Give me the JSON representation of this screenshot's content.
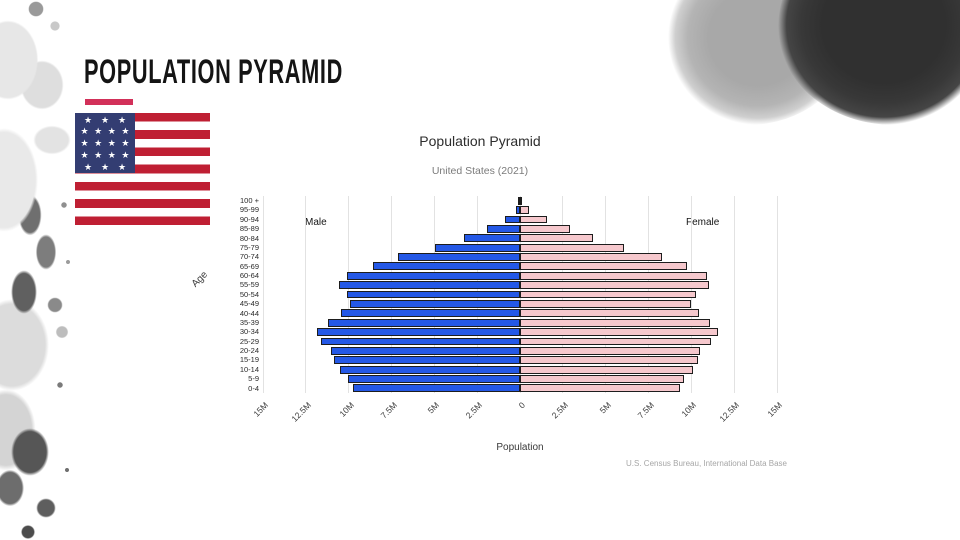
{
  "slide": {
    "title": "POPULATION PYRAMID",
    "accent_color": "#d23059"
  },
  "flag": {
    "name": "united-states-flag",
    "red": "#bf1f33",
    "blue": "#333d72",
    "star_rows": [
      3,
      4,
      4,
      4,
      3
    ]
  },
  "chart_data": {
    "type": "bar",
    "variant": "population-pyramid",
    "title": "Population Pyramid",
    "subtitle": "United States (2021)",
    "xlabel": "Population",
    "ylabel": "Age",
    "source": "U.S. Census Bureau, International Data Base",
    "unit": "millions",
    "grid": true,
    "xlim": [
      -15,
      15
    ],
    "age_groups": [
      "100 +",
      "95-99",
      "90-94",
      "85-89",
      "80-84",
      "75-79",
      "70-74",
      "65-69",
      "60-64",
      "55-59",
      "50-54",
      "45-49",
      "40-44",
      "35-39",
      "30-34",
      "25-29",
      "20-24",
      "15-19",
      "10-14",
      "5-9",
      "0-4"
    ],
    "series": [
      {
        "name": "Male",
        "side": "left",
        "color": "#2458e6",
        "values": [
          0.03,
          0.24,
          0.86,
          1.93,
          3.26,
          4.96,
          7.13,
          8.6,
          10.1,
          10.57,
          10.08,
          9.91,
          10.45,
          11.22,
          11.87,
          11.62,
          11.01,
          10.84,
          10.53,
          10.03,
          9.73
        ]
      },
      {
        "name": "Female",
        "side": "right",
        "color": "#f6c8cd",
        "values": [
          0.1,
          0.55,
          1.57,
          2.89,
          4.28,
          6.07,
          8.27,
          9.75,
          10.91,
          11.02,
          10.26,
          9.96,
          10.45,
          11.08,
          11.56,
          11.17,
          10.53,
          10.38,
          10.07,
          9.59,
          9.31
        ]
      }
    ],
    "x_ticks": {
      "values": [
        -15,
        -12.5,
        -10,
        -7.5,
        -5,
        -2.5,
        0,
        2.5,
        5,
        7.5,
        10,
        12.5,
        15
      ],
      "labels": [
        "15M",
        "12.5M",
        "10M",
        "7.5M",
        "5M",
        "2.5M",
        "0",
        "2.5M",
        "5M",
        "7.5M",
        "10M",
        "12.5M",
        "15M"
      ]
    }
  }
}
